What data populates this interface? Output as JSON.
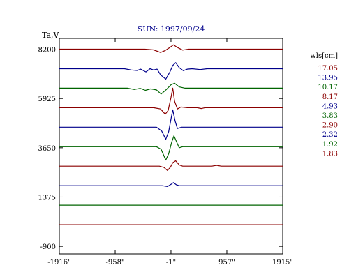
{
  "chart_data": {
    "type": "line",
    "title": "SUN: 1997/09/24",
    "ylabel": "Ta,V",
    "xlabel": "",
    "xlim": [
      -1916,
      1915
    ],
    "ylim": [
      -1250,
      8700
    ],
    "x_ticks": [
      -1916,
      -958,
      -1,
      957,
      1915
    ],
    "x_tick_labels": [
      "-1916\"",
      "-958\"",
      "-1\"",
      "957\"",
      "1915\""
    ],
    "y_ticks": [
      8200,
      5925,
      3650,
      1375,
      -900
    ],
    "y_tick_labels": [
      "8200",
      "5925",
      "3650",
      "1375",
      "-900"
    ],
    "grid": false,
    "legend": {
      "title": "wls[cm]",
      "placement": "right",
      "entries": [
        {
          "label": "17.05",
          "color": "#8b0000"
        },
        {
          "label": "13.95",
          "color": "#00008b"
        },
        {
          "label": "10.17",
          "color": "#006400"
        },
        {
          "label": "8.17",
          "color": "#8b0000"
        },
        {
          "label": "4.93",
          "color": "#00008b"
        },
        {
          "label": "3.83",
          "color": "#006400"
        },
        {
          "label": "2.90",
          "color": "#8b0000"
        },
        {
          "label": "2.32",
          "color": "#00008b"
        },
        {
          "label": "1.92",
          "color": "#006400"
        },
        {
          "label": "1.83",
          "color": "#8b0000"
        }
      ]
    },
    "series": [
      {
        "baseline": 8200,
        "color": "#8b0000",
        "points": [
          [
            -1916,
            0
          ],
          [
            -450,
            0
          ],
          [
            -300,
            -30
          ],
          [
            -180,
            -150
          ],
          [
            -100,
            -60
          ],
          [
            -20,
            80
          ],
          [
            40,
            200
          ],
          [
            110,
            80
          ],
          [
            200,
            -40
          ],
          [
            300,
            0
          ],
          [
            1915,
            0
          ]
        ]
      },
      {
        "baseline": 7300,
        "color": "#00008b",
        "points": [
          [
            -1916,
            0
          ],
          [
            -800,
            0
          ],
          [
            -680,
            -60
          ],
          [
            -580,
            -80
          ],
          [
            -520,
            -20
          ],
          [
            -430,
            -150
          ],
          [
            -360,
            0
          ],
          [
            -300,
            -60
          ],
          [
            -240,
            -20
          ],
          [
            -180,
            -280
          ],
          [
            -90,
            -480
          ],
          [
            -20,
            -150
          ],
          [
            30,
            150
          ],
          [
            80,
            280
          ],
          [
            140,
            50
          ],
          [
            210,
            -90
          ],
          [
            280,
            -20
          ],
          [
            360,
            0
          ],
          [
            500,
            -40
          ],
          [
            620,
            0
          ],
          [
            1915,
            0
          ]
        ]
      },
      {
        "baseline": 6400,
        "color": "#006400",
        "points": [
          [
            -1916,
            0
          ],
          [
            -750,
            0
          ],
          [
            -630,
            -60
          ],
          [
            -530,
            -10
          ],
          [
            -440,
            -100
          ],
          [
            -350,
            -30
          ],
          [
            -250,
            -80
          ],
          [
            -170,
            -270
          ],
          [
            -80,
            -60
          ],
          [
            0,
            160
          ],
          [
            60,
            230
          ],
          [
            140,
            60
          ],
          [
            240,
            0
          ],
          [
            1915,
            0
          ]
        ]
      },
      {
        "baseline": 5500,
        "color": "#8b0000",
        "points": [
          [
            -1916,
            0
          ],
          [
            -300,
            0
          ],
          [
            -180,
            -60
          ],
          [
            -100,
            -300
          ],
          [
            -50,
            -130
          ],
          [
            0,
            480
          ],
          [
            30,
            900
          ],
          [
            60,
            300
          ],
          [
            110,
            -60
          ],
          [
            170,
            30
          ],
          [
            280,
            0
          ],
          [
            450,
            0
          ],
          [
            520,
            -40
          ],
          [
            580,
            0
          ],
          [
            1915,
            0
          ]
        ]
      },
      {
        "baseline": 4600,
        "color": "#00008b",
        "points": [
          [
            -1916,
            0
          ],
          [
            -250,
            0
          ],
          [
            -160,
            -180
          ],
          [
            -90,
            -560
          ],
          [
            -40,
            -200
          ],
          [
            0,
            380
          ],
          [
            30,
            800
          ],
          [
            70,
            280
          ],
          [
            110,
            -60
          ],
          [
            180,
            0
          ],
          [
            1915,
            0
          ]
        ]
      },
      {
        "baseline": 3700,
        "color": "#006400",
        "points": [
          [
            -1916,
            0
          ],
          [
            -250,
            0
          ],
          [
            -170,
            -120
          ],
          [
            -90,
            -620
          ],
          [
            -40,
            -320
          ],
          [
            10,
            200
          ],
          [
            50,
            500
          ],
          [
            90,
            250
          ],
          [
            140,
            -50
          ],
          [
            200,
            0
          ],
          [
            1915,
            0
          ]
        ]
      },
      {
        "baseline": 2800,
        "color": "#8b0000",
        "points": [
          [
            -1916,
            0
          ],
          [
            -200,
            0
          ],
          [
            -120,
            -60
          ],
          [
            -60,
            -200
          ],
          [
            -10,
            -40
          ],
          [
            30,
            160
          ],
          [
            80,
            250
          ],
          [
            140,
            60
          ],
          [
            200,
            0
          ],
          [
            700,
            0
          ],
          [
            780,
            40
          ],
          [
            860,
            0
          ],
          [
            1915,
            0
          ]
        ]
      },
      {
        "baseline": 1900,
        "color": "#00008b",
        "points": [
          [
            -1916,
            0
          ],
          [
            -150,
            0
          ],
          [
            -60,
            -40
          ],
          [
            0,
            60
          ],
          [
            40,
            140
          ],
          [
            90,
            40
          ],
          [
            140,
            0
          ],
          [
            1915,
            0
          ]
        ]
      },
      {
        "baseline": 1000,
        "color": "#006400",
        "points": [
          [
            -1916,
            0
          ],
          [
            1915,
            0
          ]
        ]
      },
      {
        "baseline": 100,
        "color": "#8b0000",
        "points": [
          [
            -1916,
            0
          ],
          [
            1915,
            0
          ]
        ]
      }
    ]
  }
}
